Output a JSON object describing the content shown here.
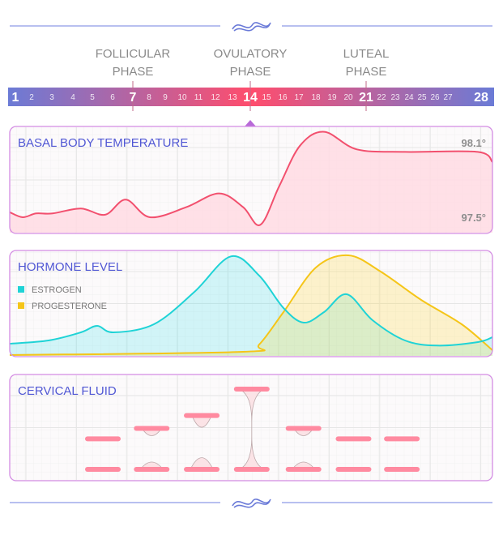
{
  "phases": [
    {
      "line1": "FOLLICULAR",
      "line2": "PHASE",
      "day": 7
    },
    {
      "line1": "OVULATORY",
      "line2": "PHASE",
      "day": 14
    },
    {
      "line1": "LUTEAL",
      "line2": "PHASE",
      "day": 21
    }
  ],
  "days": [
    "1",
    "2",
    "3",
    "4",
    "5",
    "6",
    "7",
    "8",
    "9",
    "10",
    "11",
    "12",
    "13",
    "14",
    "15",
    "16",
    "17",
    "18",
    "19",
    "20",
    "21",
    "22",
    "23",
    "24",
    "25",
    "26",
    "27",
    "28"
  ],
  "major_days": [
    "1",
    "7",
    "14",
    "21",
    "28"
  ],
  "colors": {
    "band_edge": "#6b7bd6",
    "band_center": "#ff4d6d",
    "panel_border": "#d38ce3",
    "title": "#5057d4",
    "temperature": "#f2506e",
    "estrogen": "#1fd3d6",
    "progesterone": "#f5c518",
    "fluid": "#ff8aa0",
    "ornament": "#7080e0"
  },
  "chart_data": [
    {
      "type": "area",
      "title": "BASAL BODY TEMPERATURE",
      "y_top_label": "98.1°",
      "y_bottom_label": "97.5°",
      "xlim": [
        1,
        28
      ],
      "ylim": [
        97.5,
        98.1
      ],
      "grid": true,
      "series": [
        {
          "x": [
            0.67,
            1.42,
            2.2,
            3.16,
            4.8,
            6.2,
            7.4,
            8.8,
            10.9,
            12.8,
            14.2,
            15.2,
            16.3,
            17.5,
            18.9,
            20.8,
            23.6,
            27.8,
            28.65
          ],
          "y": [
            97.54,
            97.5,
            97.53,
            97.53,
            97.57,
            97.52,
            97.64,
            97.5,
            97.58,
            97.69,
            97.58,
            97.44,
            97.75,
            98.07,
            98.18,
            98.04,
            98.02,
            98.02,
            97.94
          ]
        }
      ]
    },
    {
      "type": "area",
      "title": "HORMONE LEVEL",
      "xlim": [
        1,
        28
      ],
      "grid": true,
      "legend": "top-left",
      "series": [
        {
          "name": "ESTROGEN",
          "x": [
            0.67,
            2.92,
            4.8,
            5.74,
            6.68,
            9.03,
            11.38,
            13.49,
            15.13,
            16.54,
            17.71,
            18.89,
            20.2,
            21.7,
            23.58,
            25.46,
            27.81,
            28.65
          ],
          "y": [
            12.8,
            16,
            24,
            30.4,
            24,
            32,
            64,
            99,
            80,
            48,
            33.6,
            44,
            61.6,
            36,
            16,
            11,
            14.4,
            19.2
          ]
        },
        {
          "name": "PROGESTERONE",
          "x": [
            0.67,
            14.19,
            15.13,
            16.54,
            18.42,
            20.3,
            22.17,
            24.52,
            26.87,
            28.65
          ],
          "y": [
            1.6,
            4.8,
            12,
            44,
            88,
            100,
            84,
            56,
            32,
            6.4
          ]
        }
      ]
    },
    {
      "type": "bar",
      "title": "CERVICAL FLUID",
      "grid": true,
      "x": [
        6.07,
        8.9,
        11.8,
        14.7,
        17.7,
        20.6,
        23.4
      ],
      "separation": [
        0.38,
        0.51,
        0.67,
        1,
        0.51,
        0.38,
        0.38
      ],
      "strand": [
        "none",
        "small",
        "medium",
        "full",
        "small",
        "none",
        "none"
      ]
    }
  ]
}
